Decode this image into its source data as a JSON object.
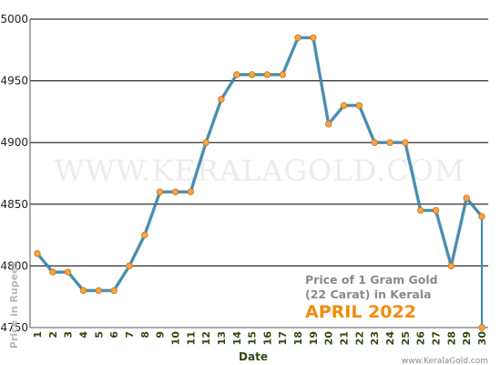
{
  "chart_data": {
    "type": "line",
    "title": "Price of 1 Gram Gold",
    "subtitle": "(22 Carat) in Kerala",
    "period": "APRIL 2022",
    "xlabel": "Date",
    "ylabel": "Price in Rupees",
    "watermark": "WWW.KERALAGOLD.COM",
    "footer": "www.KeralaGold.com",
    "ylim": [
      4750,
      5000
    ],
    "yticks": [
      4750,
      4800,
      4850,
      4900,
      4950,
      5000
    ],
    "grid": true,
    "categories": [
      "1",
      "2",
      "3",
      "4",
      "5",
      "6",
      "7",
      "8",
      "9",
      "10",
      "11",
      "12",
      "13",
      "14",
      "15",
      "16",
      "17",
      "18",
      "19",
      "20",
      "21",
      "22",
      "23",
      "24",
      "25",
      "26",
      "27",
      "28",
      "29",
      "30"
    ],
    "series": [
      {
        "values": [
          4810,
          4795,
          4795,
          4780,
          4780,
          4780,
          4800,
          4825,
          4860,
          4860,
          4860,
          4900,
          4935,
          4955,
          4955,
          4955,
          4955,
          4985,
          4985,
          4915,
          4930,
          4930,
          4900,
          4900,
          4900,
          4845,
          4845,
          4800,
          4855,
          4840
        ],
        "end_drop": 4750
      }
    ],
    "colors": {
      "line": "#3a8fb7",
      "marker": "#f7a540",
      "marker_edge": "#c8731a",
      "grid": "#000000",
      "axis": "#555555"
    }
  }
}
